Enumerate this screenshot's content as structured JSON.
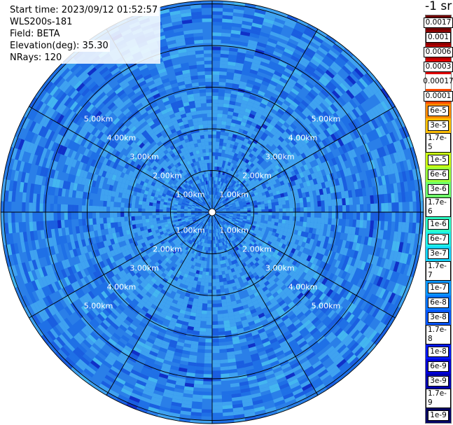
{
  "info": {
    "start_time": "Start time: 2023/09/12 01:52:57",
    "instrument": "WLS200s-181",
    "field": "Field: BETA",
    "elevation": "Elevation(deg): 35.30",
    "nrays": "NRays: 120"
  },
  "unit_label": "-1 sr",
  "range_labels": [
    "1.00km",
    "2.00km",
    "3.00km",
    "4.00km",
    "5.00km"
  ],
  "colorbar": [
    {
      "label": "0.0017",
      "color": "#6e0000"
    },
    {
      "label": "0.001",
      "color": "#8c0000"
    },
    {
      "label": "0.0006",
      "color": "#b40000"
    },
    {
      "label": "0.0003",
      "color": "#e10000"
    },
    {
      "label": "0.00017",
      "color": "#ffffff"
    },
    {
      "label": "0.0001",
      "color": "#ff4a00"
    },
    {
      "label": "6e-5",
      "color": "#ff8c00"
    },
    {
      "label": "3e-5",
      "color": "#ffc000"
    },
    {
      "label": "1.7e-5",
      "color": "#f2e600"
    },
    {
      "label": "1e-5",
      "color": "#c8ff14"
    },
    {
      "label": "6e-6",
      "color": "#9aff3a"
    },
    {
      "label": "3e-6",
      "color": "#6eff6a"
    },
    {
      "label": "1.7e-6",
      "color": "#48ff98"
    },
    {
      "label": "1e-6",
      "color": "#2effc6"
    },
    {
      "label": "6e-7",
      "color": "#1ef0e8"
    },
    {
      "label": "3e-7",
      "color": "#14d4ff"
    },
    {
      "label": "1.7e-7",
      "color": "#0eb4ff"
    },
    {
      "label": "1e-7",
      "color": "#0a94ff"
    },
    {
      "label": "6e-8",
      "color": "#0874ff"
    },
    {
      "label": "3e-8",
      "color": "#0656ff"
    },
    {
      "label": "1.7e-8",
      "color": "#0432ff"
    },
    {
      "label": "1e-8",
      "color": "#0218f5"
    },
    {
      "label": "6e-9",
      "color": "#0000d8"
    },
    {
      "label": "3e-9",
      "color": "#0000b0"
    },
    {
      "label": "1.7e-9",
      "color": "#000088"
    },
    {
      "label": "1e-9",
      "color": "#000064"
    }
  ],
  "palette": {
    "background": "#2a7fe8",
    "light": "#3fa2f0",
    "mid": "#1f70e6",
    "dark": "#1a5ee0",
    "cyan": "#44b6f0",
    "rare_dark": "#1030c8"
  }
}
